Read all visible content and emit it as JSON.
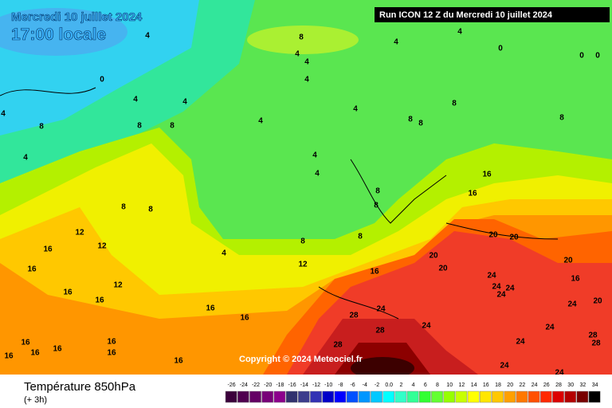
{
  "header": {
    "date": "Mercredi 10 juillet 2024",
    "time": "17:00 locale",
    "run": "Run ICON 12 Z du Mercredi 10 juillet 2024"
  },
  "copyright": "Copyright © 2024 Meteociel.fr",
  "footer": {
    "title": "Température 850hPa",
    "step": "(+ 3h)"
  },
  "scale": {
    "labels": [
      "-26",
      "-24",
      "-22",
      "-20",
      "-18",
      "-16",
      "-14",
      "-12",
      "-10",
      "-8",
      "-6",
      "-4",
      "-2",
      "0.0",
      "2",
      "4",
      "6",
      "8",
      "10",
      "12",
      "14",
      "16",
      "18",
      "20",
      "22",
      "24",
      "26",
      "28",
      "30",
      "32",
      "34"
    ],
    "colors": [
      "#3c003c",
      "#500050",
      "#640064",
      "#780078",
      "#8c008c",
      "#32326e",
      "#3c3c8c",
      "#3232b4",
      "#0000c8",
      "#0000ff",
      "#0050ff",
      "#0096ff",
      "#00c8ff",
      "#00ffff",
      "#32ffc8",
      "#32ff96",
      "#32ff32",
      "#64ff32",
      "#96ff00",
      "#c8ff00",
      "#ffff00",
      "#ffe600",
      "#ffc800",
      "#ffa000",
      "#ff7800",
      "#ff5000",
      "#ff2800",
      "#dc0000",
      "#b40000",
      "#780000",
      "#000000"
    ]
  },
  "map": {
    "contour_labels": [
      "8",
      "4",
      "4",
      "0",
      "0",
      "0",
      "0",
      "4",
      "4",
      "4",
      "4",
      "4",
      "4",
      "4",
      "8",
      "8",
      "8",
      "8",
      "8",
      "8",
      "8",
      "4",
      "4",
      "4",
      "8",
      "8",
      "8",
      "8",
      "12",
      "12",
      "16",
      "16",
      "12",
      "16",
      "16",
      "4",
      "8",
      "12",
      "8",
      "16",
      "16",
      "16",
      "16",
      "16",
      "20",
      "20",
      "20",
      "20",
      "20",
      "24",
      "24",
      "24",
      "24",
      "16",
      "20",
      "24",
      "24",
      "28",
      "28",
      "24",
      "24",
      "28",
      "28",
      "28",
      "24",
      "24",
      "24",
      "16",
      "16",
      "16",
      "16",
      "16",
      "16",
      "16",
      "4",
      "4"
    ]
  }
}
